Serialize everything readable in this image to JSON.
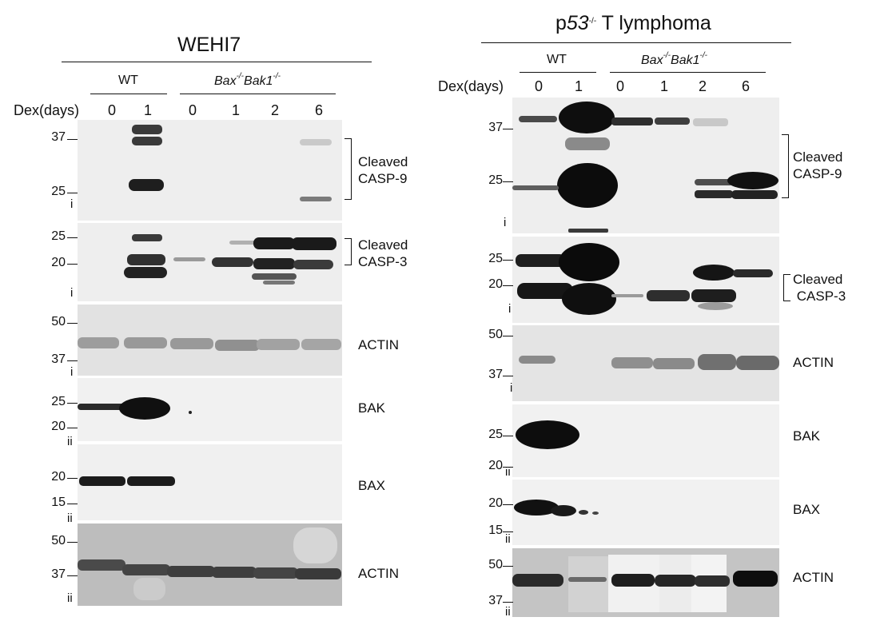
{
  "left_figure": {
    "title": "WEHI7",
    "wt_label": "WT",
    "ko_label_bax": "Bax",
    "ko_label_bak": "Bak1",
    "ko_sup": "-/-",
    "dex_label": "Dex(days)",
    "lanes": [
      "0",
      "1",
      "0",
      "1",
      "2",
      "6"
    ],
    "panels": [
      {
        "target": "Cleaved CASP-9",
        "line1": "Cleaved",
        "line2": "CASP-9",
        "markers": [
          "37",
          "25"
        ],
        "exposure": "i"
      },
      {
        "target": "Cleaved CASP-3",
        "line1": "Cleaved",
        "line2": "CASP-3",
        "markers": [
          "25",
          "20"
        ],
        "exposure": "i"
      },
      {
        "target": "ACTIN",
        "markers": [
          "50",
          "37"
        ],
        "exposure": "i"
      },
      {
        "target": "BAK",
        "markers": [
          "25",
          "20"
        ],
        "exposure": "ii"
      },
      {
        "target": "BAX",
        "markers": [
          "20",
          "15"
        ],
        "exposure": "ii"
      },
      {
        "target": "ACTIN",
        "markers": [
          "50",
          "37"
        ],
        "exposure": "ii"
      }
    ]
  },
  "right_figure": {
    "title_p": "p",
    "title_gene": "53",
    "title_sup": "-/-",
    "title_rest": " T lymphoma",
    "wt_label": "WT",
    "ko_label_bax": "Bax",
    "ko_label_bak": "Bak1",
    "ko_sup": "-/-",
    "dex_label": "Dex(days)",
    "lanes": [
      "0",
      "1",
      "0",
      "1",
      "2",
      "6"
    ],
    "panels": [
      {
        "target": "Cleaved CASP-9",
        "line1": "Cleaved",
        "line2": "CASP-9",
        "markers": [
          "37",
          "25"
        ],
        "exposure": "i"
      },
      {
        "target": "Cleaved CASP-3",
        "line1": "Cleaved",
        "line2": "CASP-3",
        "markers": [
          "25",
          "20"
        ],
        "exposure": "i"
      },
      {
        "target": "ACTIN",
        "markers": [
          "50",
          "37"
        ],
        "exposure": "i"
      },
      {
        "target": "BAK",
        "markers": [
          "25",
          "20"
        ],
        "exposure": "ii"
      },
      {
        "target": "BAX",
        "markers": [
          "20",
          "15"
        ],
        "exposure": "ii"
      },
      {
        "target": "ACTIN",
        "markers": [
          "50",
          "37"
        ],
        "exposure": "ii"
      }
    ]
  }
}
